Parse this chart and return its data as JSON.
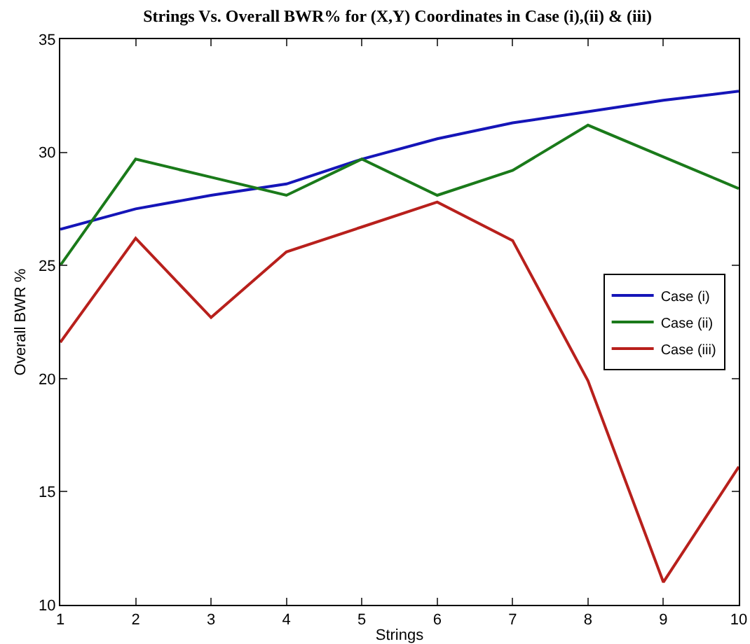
{
  "chart_data": {
    "type": "line",
    "title": "Strings Vs. Overall BWR% for (X,Y) Coordinates in Case (i),(ii) & (iii)",
    "xlabel": "Strings",
    "ylabel": "Overall BWR %",
    "x": [
      1,
      2,
      3,
      4,
      5,
      6,
      7,
      8,
      9,
      10
    ],
    "series": [
      {
        "name": "Case (i)",
        "color": "#1515b8",
        "values": [
          26.6,
          27.5,
          28.1,
          28.6,
          29.7,
          30.6,
          31.3,
          31.8,
          32.3,
          32.7
        ]
      },
      {
        "name": "Case (ii)",
        "color": "#1a7a1a",
        "values": [
          25.0,
          29.7,
          28.9,
          28.1,
          29.7,
          28.1,
          29.2,
          31.2,
          29.8,
          28.4
        ]
      },
      {
        "name": "Case (iii)",
        "color": "#b8201c",
        "values": [
          21.6,
          26.2,
          22.7,
          25.6,
          26.7,
          27.8,
          26.1,
          19.9,
          11.0,
          16.1
        ]
      }
    ],
    "xlim": [
      1,
      10
    ],
    "xticks": [
      1,
      2,
      3,
      4,
      5,
      6,
      7,
      8,
      9,
      10
    ],
    "ylim": [
      10,
      35
    ],
    "yticks": [
      10,
      15,
      20,
      25,
      30,
      35
    ],
    "grid": false,
    "legend": "right",
    "marker": "none",
    "line_style": "solid"
  }
}
